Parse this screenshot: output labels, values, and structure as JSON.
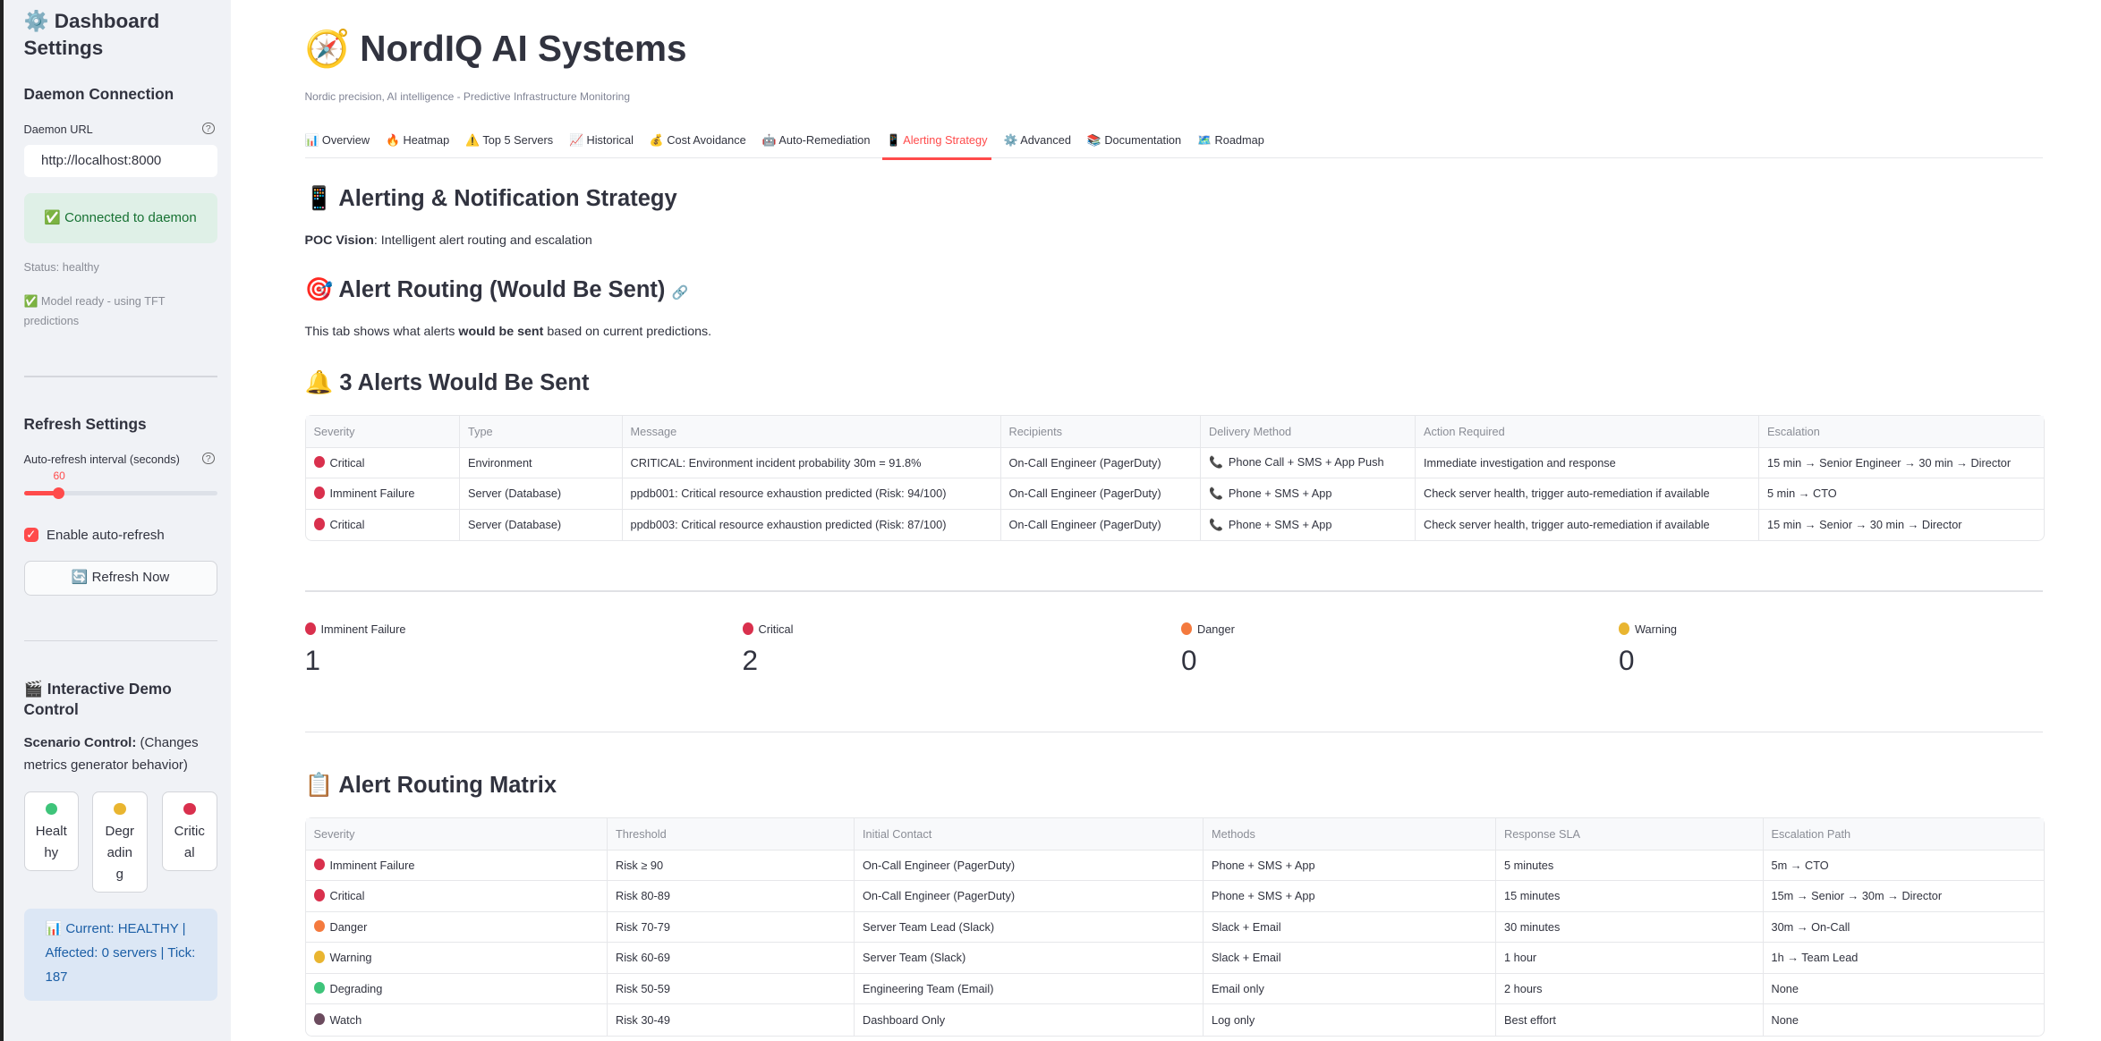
{
  "colors": {
    "accent": "#ff4b4b",
    "sidebar_bg": "#f0f2f6",
    "success_bg": "#dff0e7",
    "success_text": "#177233",
    "info_bg": "#dce7f5",
    "info_text": "#1c5fa6",
    "imminent": "#d9304d",
    "critical": "#d9304d",
    "danger": "#f47a3e",
    "warning": "#e9b530",
    "degrading": "#3ec47a",
    "watch": "#6b4b5e"
  },
  "sidebar": {
    "title": "⚙️ Dashboard Settings",
    "daemon_heading": "Daemon Connection",
    "daemon_url_label": "Daemon URL",
    "daemon_url_value": "http://localhost:8000",
    "connected": "✅ Connected to daemon",
    "status": "Status: healthy",
    "model": "✅ Model ready - using TFT predictions",
    "refresh_heading": "Refresh Settings",
    "interval_label": "Auto-refresh interval (seconds)",
    "interval_value": "60",
    "interval_fraction": 0.18,
    "auto_refresh_label": "Enable auto-refresh",
    "auto_refresh_checked": true,
    "refresh_now": "🔄 Refresh Now",
    "demo_heading": "🎬 Interactive Demo Control",
    "scenario_bold": "Scenario Control:",
    "scenario_text": " (Changes metrics generator behavior)",
    "scenarios": [
      {
        "label": "Healthy",
        "color": "#3ec47a"
      },
      {
        "label": "Degrading",
        "color": "#e9b530"
      },
      {
        "label": "Critical",
        "color": "#d9304d"
      }
    ],
    "current": "📊 Current: HEALTHY | Affected: 0 servers | Tick: 187"
  },
  "header": {
    "logo": "🧭",
    "title": "NordIQ AI Systems",
    "subtitle": "Nordic precision, AI intelligence - Predictive Infrastructure Monitoring"
  },
  "tabs": [
    "📊 Overview",
    "🔥 Heatmap",
    "⚠️ Top 5 Servers",
    "📈 Historical",
    "💰 Cost Avoidance",
    "🤖 Auto-Remediation",
    "📱 Alerting Strategy",
    "⚙️ Advanced",
    "📚 Documentation",
    "🗺️ Roadmap"
  ],
  "active_tab": 6,
  "content": {
    "heading": "📱 Alerting & Notification Strategy",
    "poc_bold": "POC Vision",
    "poc_text": ": Intelligent alert routing and escalation",
    "routing_heading": "🎯 Alert Routing (Would Be Sent)",
    "link_icon": "🔗",
    "desc_pre": "This tab shows what alerts ",
    "desc_bold": "would be sent",
    "desc_post": " based on current predictions.",
    "alerts_heading": "🔔 3 Alerts Would Be Sent",
    "alerts_table": {
      "columns": [
        "Severity",
        "Type",
        "Message",
        "Recipients",
        "Delivery Method",
        "Action Required",
        "Escalation"
      ],
      "rows": [
        {
          "sev": "critical",
          "cells": [
            "Critical",
            "Environment",
            "CRITICAL: Environment incident probability 30m = 91.8%",
            "On-Call Engineer (PagerDuty)",
            "Phone Call + SMS + App Push",
            "Immediate investigation and response",
            "15 min → Senior Engineer → 30 min → Director"
          ]
        },
        {
          "sev": "imminent",
          "cells": [
            "Imminent Failure",
            "Server (Database)",
            "ppdb001: Critical resource exhaustion predicted (Risk: 94/100)",
            "On-Call Engineer (PagerDuty)",
            "Phone + SMS + App",
            "Check server health, trigger auto-remediation if available",
            "5 min → CTO"
          ]
        },
        {
          "sev": "critical",
          "cells": [
            "Critical",
            "Server (Database)",
            "ppdb003: Critical resource exhaustion predicted (Risk: 87/100)",
            "On-Call Engineer (PagerDuty)",
            "Phone + SMS + App",
            "Check server health, trigger auto-remediation if available",
            "15 min → Senior → 30 min → Director"
          ]
        }
      ]
    },
    "metrics": [
      {
        "sev": "imminent",
        "label": "Imminent Failure",
        "value": "1"
      },
      {
        "sev": "critical",
        "label": "Critical",
        "value": "2"
      },
      {
        "sev": "danger",
        "label": "Danger",
        "value": "0"
      },
      {
        "sev": "warning",
        "label": "Warning",
        "value": "0"
      }
    ],
    "matrix_heading": "📋 Alert Routing Matrix",
    "matrix_table": {
      "columns": [
        "Severity",
        "Threshold",
        "Initial Contact",
        "Methods",
        "Response SLA",
        "Escalation Path"
      ],
      "rows": [
        {
          "sev": "imminent",
          "cells": [
            "Imminent Failure",
            "Risk ≥ 90",
            "On-Call Engineer (PagerDuty)",
            "Phone + SMS + App",
            "5 minutes",
            "5m → CTO"
          ]
        },
        {
          "sev": "critical",
          "cells": [
            "Critical",
            "Risk 80-89",
            "On-Call Engineer (PagerDuty)",
            "Phone + SMS + App",
            "15 minutes",
            "15m → Senior → 30m → Director"
          ]
        },
        {
          "sev": "danger",
          "cells": [
            "Danger",
            "Risk 70-79",
            "Server Team Lead (Slack)",
            "Slack + Email",
            "30 minutes",
            "30m → On-Call"
          ]
        },
        {
          "sev": "warning",
          "cells": [
            "Warning",
            "Risk 60-69",
            "Server Team (Slack)",
            "Slack + Email",
            "1 hour",
            "1h → Team Lead"
          ]
        },
        {
          "sev": "degrading",
          "cells": [
            "Degrading",
            "Risk 50-59",
            "Engineering Team (Email)",
            "Email only",
            "2 hours",
            "None"
          ]
        },
        {
          "sev": "watch",
          "cells": [
            "Watch",
            "Risk 30-49",
            "Dashboard Only",
            "Log only",
            "Best effort",
            "None"
          ]
        }
      ]
    }
  }
}
